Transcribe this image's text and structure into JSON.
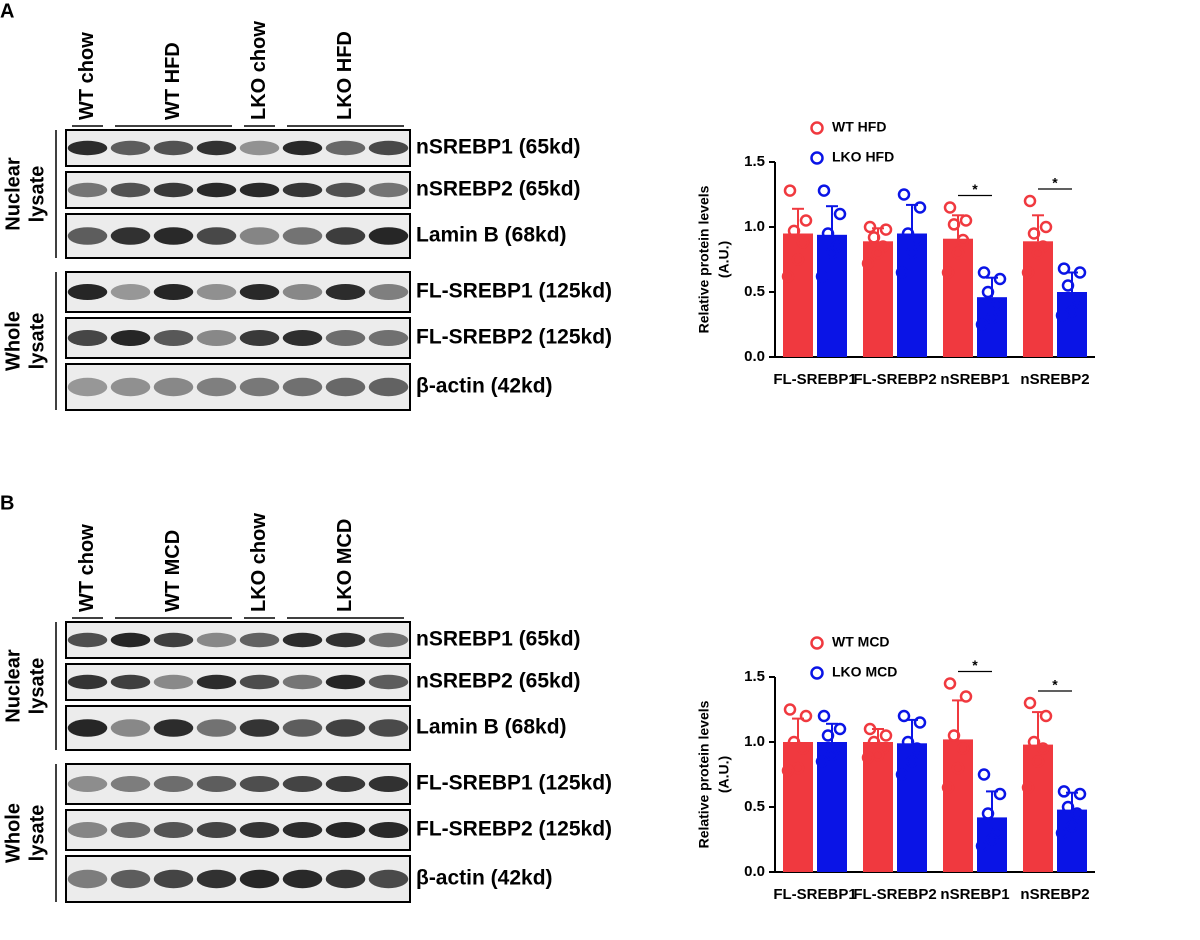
{
  "panel_labels": [
    "A",
    "B"
  ],
  "blots": [
    {
      "groups": [
        "WT chow",
        "WT HFD",
        "LKO chow",
        "LKO HFD"
      ],
      "compartments": [
        [
          "Nuclear",
          "lysate"
        ],
        [
          "Whole",
          "lysate"
        ]
      ],
      "rows": [
        [
          "nSREBP1 (65kd)",
          "nSREBP2 (65kd)",
          "Lamin B (68kd)"
        ],
        [
          "FL-SREBP1 (125kd)",
          "FL-SREBP2 (125kd)",
          "β-actin (42kd)"
        ]
      ]
    },
    {
      "groups": [
        "WT chow",
        "WT MCD",
        "LKO chow",
        "LKO MCD"
      ],
      "compartments": [
        [
          "Nuclear",
          "lysate"
        ],
        [
          "Whole",
          "lysate"
        ]
      ],
      "rows": [
        [
          "nSREBP1 (65kd)",
          "nSREBP2 (65kd)",
          "Lamin B (68kd)"
        ],
        [
          "FL-SREBP1 (125kd)",
          "FL-SREBP2 (125kd)",
          "β-actin (42kd)"
        ]
      ]
    }
  ],
  "chart_data": [
    {
      "type": "bar",
      "ylabel": [
        "Relative protein levels",
        "(A.U.)"
      ],
      "categories": [
        "FL-SREBP1",
        "FL-SREBP2",
        "nSREBP1",
        "nSREBP2"
      ],
      "series": [
        {
          "name": "WT HFD",
          "color": "#f0393f",
          "values": [
            0.95,
            0.89,
            0.91,
            0.89
          ],
          "errors": [
            0.19,
            0.1,
            0.18,
            0.2
          ],
          "points": [
            [
              1.28,
              1.05,
              0.97,
              0.88,
              0.75,
              0.62
            ],
            [
              1.0,
              0.98,
              0.92,
              0.85,
              0.8,
              0.72
            ],
            [
              1.15,
              1.05,
              1.02,
              0.9,
              0.8,
              0.65
            ],
            [
              1.2,
              1.0,
              0.95,
              0.85,
              0.8,
              0.65
            ]
          ]
        },
        {
          "name": "LKO HFD",
          "color": "#0a14e6",
          "values": [
            0.94,
            0.95,
            0.46,
            0.5
          ],
          "errors": [
            0.22,
            0.22,
            0.15,
            0.15
          ],
          "points": [
            [
              1.28,
              1.1,
              0.95,
              0.85,
              0.8,
              0.62
            ],
            [
              1.25,
              1.15,
              0.95,
              0.9,
              0.8,
              0.65
            ],
            [
              0.65,
              0.6,
              0.5,
              0.4,
              0.3,
              0.25
            ],
            [
              0.68,
              0.65,
              0.55,
              0.45,
              0.35,
              0.32
            ]
          ]
        }
      ],
      "significance": [
        null,
        null,
        "*",
        "*"
      ],
      "ylim": [
        0,
        1.5
      ],
      "yticks": [
        {
          "value": 0,
          "label": "0.0"
        },
        {
          "value": 0.5,
          "label": "0.5"
        },
        {
          "value": 1,
          "label": "1.0"
        },
        {
          "value": 1.5,
          "label": "1.5"
        }
      ]
    },
    {
      "type": "bar",
      "ylabel": [
        "Relative protein levels",
        "(A.U.)"
      ],
      "categories": [
        "FL-SREBP1",
        "FL-SREBP2",
        "nSREBP1",
        "nSREBP2"
      ],
      "series": [
        {
          "name": "WT MCD",
          "color": "#f0393f",
          "values": [
            1.0,
            1.0,
            1.02,
            0.98
          ],
          "errors": [
            0.18,
            0.1,
            0.3,
            0.25
          ],
          "points": [
            [
              1.25,
              1.2,
              1.0,
              0.95,
              0.8,
              0.78
            ],
            [
              1.1,
              1.05,
              1.0,
              0.95,
              0.9,
              0.88
            ],
            [
              1.45,
              1.35,
              1.05,
              0.95,
              0.8,
              0.65
            ],
            [
              1.3,
              1.2,
              1.0,
              0.95,
              0.85,
              0.65
            ]
          ]
        },
        {
          "name": "LKO MCD",
          "color": "#0a14e6",
          "values": [
            1.0,
            0.99,
            0.42,
            0.48
          ],
          "errors": [
            0.14,
            0.18,
            0.2,
            0.13
          ],
          "points": [
            [
              1.2,
              1.1,
              1.05,
              0.95,
              0.9,
              0.85
            ],
            [
              1.2,
              1.15,
              1.0,
              0.95,
              0.85,
              0.75
            ],
            [
              0.75,
              0.6,
              0.45,
              0.3,
              0.25,
              0.2
            ],
            [
              0.62,
              0.6,
              0.5,
              0.45,
              0.35,
              0.3
            ]
          ]
        }
      ],
      "significance": [
        null,
        null,
        "*",
        "*"
      ],
      "ylim": [
        0,
        1.5
      ],
      "yticks": [
        {
          "value": 0,
          "label": "0.0"
        },
        {
          "value": 0.5,
          "label": "0.5"
        },
        {
          "value": 1,
          "label": "1.0"
        },
        {
          "value": 1.5,
          "label": "1.5"
        }
      ]
    }
  ]
}
